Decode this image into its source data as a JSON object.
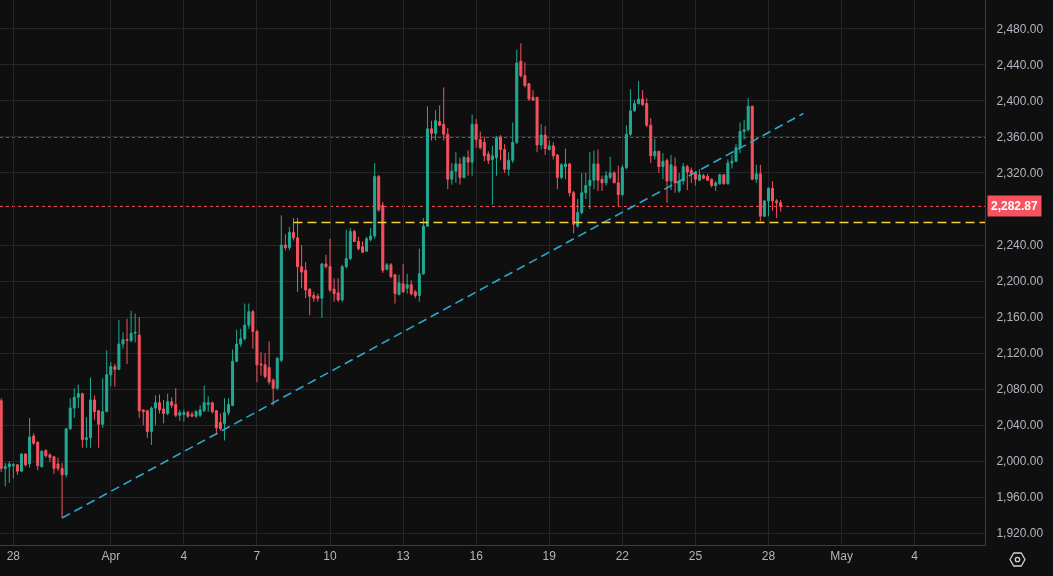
{
  "chart_data": {
    "type": "candlestick",
    "x": [
      "--03-27T12:00",
      "--03-27T16:00",
      "--03-27T20:00",
      "--03-28T00:00",
      "--03-28T04:00",
      "--03-28T08:00",
      "--03-28T12:00",
      "--03-28T16:00",
      "--03-28T20:00",
      "--03-29T00:00",
      "--03-29T04:00",
      "--03-29T08:00",
      "--03-29T12:00",
      "--03-29T16:00",
      "--03-29T20:00",
      "--03-30T00:00",
      "--03-30T04:00",
      "--03-30T08:00",
      "--03-30T12:00",
      "--03-30T16:00",
      "--03-30T20:00",
      "--03-31T00:00",
      "--03-31T04:00",
      "--03-31T08:00",
      "--03-31T12:00",
      "--03-31T16:00",
      "--03-31T20:00",
      "--04-01T00:00",
      "--04-01T04:00",
      "--04-01T08:00",
      "--04-01T12:00",
      "--04-01T16:00",
      "--04-01T20:00",
      "--04-02T00:00",
      "--04-02T04:00",
      "--04-02T08:00",
      "--04-02T12:00",
      "--04-02T16:00",
      "--04-02T20:00",
      "--04-03T00:00",
      "--04-03T04:00",
      "--04-03T08:00",
      "--04-03T12:00",
      "--04-03T16:00",
      "--04-03T20:00",
      "--04-04T00:00",
      "--04-04T04:00",
      "--04-04T08:00",
      "--04-04T12:00",
      "--04-04T16:00",
      "--04-04T20:00",
      "--04-05T00:00",
      "--04-05T04:00",
      "--04-05T08:00",
      "--04-05T12:00",
      "--04-05T16:00",
      "--04-05T20:00",
      "--04-06T00:00",
      "--04-06T04:00",
      "--04-06T08:00",
      "--04-06T12:00",
      "--04-06T16:00",
      "--04-06T20:00",
      "--04-07T00:00",
      "--04-07T04:00",
      "--04-07T08:00",
      "--04-07T12:00",
      "--04-07T16:00",
      "--04-07T20:00",
      "--04-08T00:00",
      "--04-08T04:00",
      "--04-08T08:00",
      "--04-08T12:00",
      "--04-08T16:00",
      "--04-08T20:00",
      "--04-09T00:00",
      "--04-09T04:00",
      "--04-09T08:00",
      "--04-09T12:00",
      "--04-09T16:00",
      "--04-09T20:00",
      "--04-10T00:00",
      "--04-10T04:00",
      "--04-10T08:00",
      "--04-10T12:00",
      "--04-10T16:00",
      "--04-10T20:00",
      "--04-11T00:00",
      "--04-11T04:00",
      "--04-11T08:00",
      "--04-11T12:00",
      "--04-11T16:00",
      "--04-11T20:00",
      "--04-12T00:00",
      "--04-12T04:00",
      "--04-12T08:00",
      "--04-12T12:00",
      "--04-12T16:00",
      "--04-12T20:00",
      "--04-13T00:00",
      "--04-13T04:00",
      "--04-13T08:00",
      "--04-13T12:00",
      "--04-13T16:00",
      "--04-13T20:00",
      "--04-14T00:00",
      "--04-14T04:00",
      "--04-14T08:00",
      "--04-14T12:00",
      "--04-14T16:00",
      "--04-14T20:00",
      "--04-15T00:00",
      "--04-15T04:00",
      "--04-15T08:00",
      "--04-15T12:00",
      "--04-15T16:00",
      "--04-15T20:00",
      "--04-16T00:00",
      "--04-16T04:00",
      "--04-16T08:00",
      "--04-16T12:00",
      "--04-16T16:00",
      "--04-16T20:00",
      "--04-17T00:00",
      "--04-17T04:00",
      "--04-17T08:00",
      "--04-17T12:00",
      "--04-17T16:00",
      "--04-17T20:00",
      "--04-18T00:00",
      "--04-18T04:00",
      "--04-18T08:00",
      "--04-18T12:00",
      "--04-18T16:00",
      "--04-18T20:00",
      "--04-19T00:00",
      "--04-19T04:00",
      "--04-19T08:00",
      "--04-19T12:00",
      "--04-19T16:00",
      "--04-19T20:00",
      "--04-20T00:00",
      "--04-20T04:00",
      "--04-20T08:00",
      "--04-20T12:00",
      "--04-20T16:00",
      "--04-20T20:00",
      "--04-21T00:00",
      "--04-21T04:00",
      "--04-21T08:00",
      "--04-21T12:00",
      "--04-21T16:00",
      "--04-21T20:00",
      "--04-22T00:00",
      "--04-22T04:00",
      "--04-22T08:00",
      "--04-22T12:00",
      "--04-22T16:00",
      "--04-22T20:00",
      "--04-23T00:00",
      "--04-23T04:00",
      "--04-23T08:00",
      "--04-23T12:00",
      "--04-23T16:00",
      "--04-23T20:00",
      "--04-24T00:00",
      "--04-24T04:00",
      "--04-24T08:00",
      "--04-24T12:00",
      "--04-24T16:00",
      "--04-24T20:00",
      "--04-25T00:00",
      "--04-25T04:00",
      "--04-25T08:00",
      "--04-25T12:00",
      "--04-25T16:00",
      "--04-25T20:00",
      "--04-26T00:00",
      "--04-26T04:00",
      "--04-26T08:00",
      "--04-26T12:00",
      "--04-26T16:00",
      "--04-26T20:00",
      "--04-27T00:00",
      "--04-27T04:00",
      "--04-27T08:00",
      "--04-27T12:00",
      "--04-27T16:00",
      "--04-27T20:00",
      "--04-28T00:00",
      "--04-28T04:00",
      "--04-28T08:00",
      "--04-28T12:00"
    ],
    "ohlc": [
      [
        2067,
        2070,
        1988,
        1992
      ],
      [
        1992,
        1998,
        1972,
        1994
      ],
      [
        1994,
        2000,
        1976,
        1997
      ],
      [
        1995,
        1998,
        1981,
        1996
      ],
      [
        1996,
        1997,
        1985,
        1989
      ],
      [
        1989,
        2009,
        1988,
        2008
      ],
      [
        2008,
        2009,
        1994,
        1996
      ],
      [
        1997,
        2048,
        1993,
        2027
      ],
      [
        2028,
        2031,
        2018,
        2020
      ],
      [
        2021,
        2022,
        1990,
        1995
      ],
      [
        1994,
        2012,
        1993,
        2011
      ],
      [
        2012,
        2013,
        2004,
        2006
      ],
      [
        2007,
        2009,
        1999,
        2004
      ],
      [
        2005,
        2006,
        1986,
        1992
      ],
      [
        1997,
        2004,
        1989,
        1992
      ],
      [
        1992,
        1998,
        1937,
        1985
      ],
      [
        1985,
        2037,
        1982,
        2036
      ],
      [
        2036,
        2070,
        2035,
        2059
      ],
      [
        2059,
        2081,
        2048,
        2071
      ],
      [
        2071,
        2085,
        2059,
        2075
      ],
      [
        2075,
        2076,
        2015,
        2024
      ],
      [
        2024,
        2049,
        2015,
        2026
      ],
      [
        2026,
        2093,
        2015,
        2068
      ],
      [
        2068,
        2073,
        2046,
        2055
      ],
      [
        2056,
        2057,
        2015,
        2041
      ],
      [
        2041,
        2092,
        2037,
        2055
      ],
      [
        2055,
        2123,
        2055,
        2096
      ],
      [
        2096,
        2110,
        2083,
        2105
      ],
      [
        2105,
        2108,
        2083,
        2102
      ],
      [
        2102,
        2157,
        2101,
        2130
      ],
      [
        2130,
        2143,
        2125,
        2135
      ],
      [
        2135,
        2158,
        2108,
        2134
      ],
      [
        2134,
        2167,
        2132,
        2142
      ],
      [
        2142,
        2164,
        2132,
        2143
      ],
      [
        2140,
        2160,
        2048,
        2056
      ],
      [
        2057,
        2057,
        2040,
        2055
      ],
      [
        2056,
        2057,
        2026,
        2033
      ],
      [
        2033,
        2061,
        2018,
        2059
      ],
      [
        2059,
        2073,
        2040,
        2065
      ],
      [
        2065,
        2074,
        2053,
        2057
      ],
      [
        2058,
        2068,
        2042,
        2053
      ],
      [
        2053,
        2075,
        2051,
        2066
      ],
      [
        2066,
        2071,
        2059,
        2062
      ],
      [
        2063,
        2081,
        2049,
        2051
      ],
      [
        2051,
        2057,
        2045,
        2054
      ],
      [
        2052,
        2057,
        2044,
        2054
      ],
      [
        2054,
        2056,
        2048,
        2050
      ],
      [
        2052,
        2055,
        2049,
        2050
      ],
      [
        2050,
        2057,
        2048,
        2055
      ],
      [
        2051,
        2062,
        2049,
        2057
      ],
      [
        2056,
        2084,
        2055,
        2065
      ],
      [
        2063,
        2072,
        2055,
        2065
      ],
      [
        2065,
        2066,
        2053,
        2055
      ],
      [
        2056,
        2057,
        2029,
        2037
      ],
      [
        2043,
        2053,
        2034,
        2036
      ],
      [
        2042,
        2070,
        2023,
        2054
      ],
      [
        2054,
        2070,
        2051,
        2063
      ],
      [
        2062,
        2124,
        2061,
        2111
      ],
      [
        2111,
        2146,
        2110,
        2130
      ],
      [
        2130,
        2147,
        2127,
        2136
      ],
      [
        2136,
        2175,
        2134,
        2151
      ],
      [
        2151,
        2175,
        2147,
        2166
      ],
      [
        2166,
        2168,
        2125,
        2144
      ],
      [
        2144,
        2146,
        2088,
        2107
      ],
      [
        2108,
        2121,
        2095,
        2107
      ],
      [
        2107,
        2120,
        2092,
        2094
      ],
      [
        2104,
        2133,
        2085,
        2088
      ],
      [
        2090,
        2092,
        2062,
        2081
      ],
      [
        2081,
        2116,
        2079,
        2114
      ],
      [
        2112,
        2273,
        2110,
        2240
      ],
      [
        2240,
        2252,
        2234,
        2237
      ],
      [
        2237,
        2260,
        2234,
        2254
      ],
      [
        2254,
        2270,
        2245,
        2248
      ],
      [
        2248,
        2270,
        2188,
        2216
      ],
      [
        2216,
        2240,
        2192,
        2210
      ],
      [
        2212,
        2221,
        2181,
        2190
      ],
      [
        2191,
        2192,
        2162,
        2183
      ],
      [
        2184,
        2188,
        2177,
        2181
      ],
      [
        2183,
        2186,
        2177,
        2181
      ],
      [
        2181,
        2220,
        2159,
        2219
      ],
      [
        2219,
        2229,
        2214,
        2216
      ],
      [
        2216,
        2247,
        2188,
        2190
      ],
      [
        2191,
        2203,
        2177,
        2186
      ],
      [
        2187,
        2203,
        2177,
        2179
      ],
      [
        2179,
        2218,
        2177,
        2216
      ],
      [
        2216,
        2257,
        2214,
        2225
      ],
      [
        2225,
        2259,
        2223,
        2255
      ],
      [
        2255,
        2257,
        2244,
        2244
      ],
      [
        2244,
        2249,
        2234,
        2236
      ],
      [
        2238,
        2244,
        2231,
        2232
      ],
      [
        2233,
        2249,
        2233,
        2247
      ],
      [
        2246,
        2259,
        2244,
        2250
      ],
      [
        2250,
        2331,
        2247,
        2316
      ],
      [
        2316,
        2318,
        2277,
        2279
      ],
      [
        2284,
        2288,
        2209,
        2212
      ],
      [
        2213,
        2220,
        2212,
        2218
      ],
      [
        2218,
        2220,
        2203,
        2205
      ],
      [
        2207,
        2207,
        2175,
        2186
      ],
      [
        2185,
        2207,
        2184,
        2198
      ],
      [
        2197,
        2219,
        2187,
        2188
      ],
      [
        2192,
        2208,
        2186,
        2196
      ],
      [
        2196,
        2201,
        2184,
        2186
      ],
      [
        2188,
        2190,
        2181,
        2184
      ],
      [
        2184,
        2236,
        2177,
        2208
      ],
      [
        2208,
        2270,
        2207,
        2261
      ],
      [
        2261,
        2394,
        2260,
        2369
      ],
      [
        2369,
        2378,
        2356,
        2364
      ],
      [
        2364,
        2390,
        2356,
        2378
      ],
      [
        2377,
        2395,
        2372,
        2373
      ],
      [
        2374,
        2415,
        2356,
        2363
      ],
      [
        2363,
        2370,
        2302,
        2313
      ],
      [
        2313,
        2331,
        2307,
        2322
      ],
      [
        2322,
        2343,
        2309,
        2330
      ],
      [
        2330,
        2337,
        2307,
        2315
      ],
      [
        2315,
        2339,
        2314,
        2337
      ],
      [
        2337,
        2345,
        2317,
        2332
      ],
      [
        2332,
        2385,
        2317,
        2374
      ],
      [
        2374,
        2380,
        2348,
        2357
      ],
      [
        2357,
        2366,
        2346,
        2348
      ],
      [
        2354,
        2360,
        2333,
        2339
      ],
      [
        2341,
        2344,
        2330,
        2334
      ],
      [
        2335,
        2350,
        2285,
        2339
      ],
      [
        2337,
        2361,
        2317,
        2359
      ],
      [
        2360,
        2362,
        2334,
        2346
      ],
      [
        2346,
        2352,
        2320,
        2324
      ],
      [
        2324,
        2343,
        2317,
        2334
      ],
      [
        2334,
        2376,
        2331,
        2354
      ],
      [
        2354,
        2457,
        2352,
        2442
      ],
      [
        2444,
        2464,
        2426,
        2428
      ],
      [
        2428,
        2443,
        2415,
        2417
      ],
      [
        2419,
        2420,
        2400,
        2402
      ],
      [
        2404,
        2412,
        2400,
        2401
      ],
      [
        2404,
        2404,
        2343,
        2351
      ],
      [
        2351,
        2374,
        2346,
        2362
      ],
      [
        2362,
        2372,
        2340,
        2347
      ],
      [
        2346,
        2356,
        2345,
        2350
      ],
      [
        2350,
        2354,
        2335,
        2339
      ],
      [
        2340,
        2341,
        2302,
        2315
      ],
      [
        2315,
        2331,
        2313,
        2329
      ],
      [
        2327,
        2347,
        2313,
        2330
      ],
      [
        2330,
        2331,
        2294,
        2298
      ],
      [
        2298,
        2300,
        2253,
        2263
      ],
      [
        2261,
        2291,
        2259,
        2276
      ],
      [
        2276,
        2320,
        2274,
        2298
      ],
      [
        2298,
        2320,
        2291,
        2306
      ],
      [
        2306,
        2343,
        2280,
        2312
      ],
      [
        2312,
        2345,
        2302,
        2330
      ],
      [
        2330,
        2346,
        2300,
        2312
      ],
      [
        2313,
        2317,
        2300,
        2309
      ],
      [
        2309,
        2322,
        2306,
        2317
      ],
      [
        2315,
        2338,
        2313,
        2320
      ],
      [
        2320,
        2322,
        2309,
        2309
      ],
      [
        2309,
        2328,
        2283,
        2296
      ],
      [
        2296,
        2329,
        2294,
        2326
      ],
      [
        2326,
        2373,
        2324,
        2363
      ],
      [
        2363,
        2413,
        2361,
        2389
      ],
      [
        2389,
        2401,
        2388,
        2397
      ],
      [
        2397,
        2422,
        2396,
        2402
      ],
      [
        2402,
        2412,
        2394,
        2396
      ],
      [
        2397,
        2403,
        2371,
        2373
      ],
      [
        2373,
        2381,
        2331,
        2339
      ],
      [
        2339,
        2358,
        2335,
        2344
      ],
      [
        2344,
        2344,
        2320,
        2327
      ],
      [
        2327,
        2342,
        2313,
        2333
      ],
      [
        2334,
        2336,
        2287,
        2311
      ],
      [
        2311,
        2340,
        2301,
        2329
      ],
      [
        2327,
        2337,
        2298,
        2309
      ],
      [
        2300,
        2320,
        2298,
        2311
      ],
      [
        2311,
        2331,
        2307,
        2327
      ],
      [
        2327,
        2329,
        2301,
        2321
      ],
      [
        2323,
        2326,
        2309,
        2319
      ],
      [
        2320,
        2322,
        2306,
        2313
      ],
      [
        2312,
        2324,
        2311,
        2318
      ],
      [
        2317,
        2319,
        2313,
        2314
      ],
      [
        2316,
        2319,
        2311,
        2312
      ],
      [
        2313,
        2314,
        2304,
        2306
      ],
      [
        2306,
        2311,
        2300,
        2309
      ],
      [
        2308,
        2319,
        2307,
        2318
      ],
      [
        2318,
        2318,
        2307,
        2308
      ],
      [
        2308,
        2335,
        2307,
        2331
      ],
      [
        2331,
        2340,
        2325,
        2333
      ],
      [
        2333,
        2352,
        2332,
        2348
      ],
      [
        2348,
        2376,
        2342,
        2366
      ],
      [
        2366,
        2379,
        2357,
        2368
      ],
      [
        2368,
        2403,
        2366,
        2394
      ],
      [
        2394,
        2395,
        2312,
        2313
      ],
      [
        2313,
        2329,
        2309,
        2319
      ],
      [
        2319,
        2329,
        2266,
        2272
      ],
      [
        2272,
        2290,
        2271,
        2289
      ],
      [
        2289,
        2304,
        2272,
        2303
      ],
      [
        2303,
        2311,
        2278,
        2289
      ],
      [
        2289,
        2291,
        2270,
        2287
      ],
      [
        2287,
        2290,
        2277,
        2282.87
      ]
    ],
    "colors": [
      "#f7525f",
      "#22ab94",
      "#22ab94",
      "#22ab94",
      "#f7525f",
      "#22ab94",
      "#f7525f",
      "#22ab94",
      "#f7525f",
      "#f7525f",
      "#22ab94",
      "#f7525f",
      "#f7525f",
      "#f7525f",
      "#f7525f",
      "#f7525f",
      "#22ab94",
      "#22ab94",
      "#22ab94",
      "#22ab94",
      "#f7525f",
      "#22ab94",
      "#22ab94",
      "#f7525f",
      "#f7525f",
      "#22ab94",
      "#22ab94",
      "#22ab94",
      "#f7525f",
      "#22ab94",
      "#22ab94",
      "#f7525f",
      "#22ab94",
      "#22ab94",
      "#f7525f",
      "#f7525f",
      "#f7525f",
      "#22ab94",
      "#22ab94",
      "#f7525f",
      "#f7525f",
      "#22ab94",
      "#f7525f",
      "#f7525f",
      "#22ab94",
      "#22ab94",
      "#f7525f",
      "#f7525f",
      "#22ab94",
      "#22ab94",
      "#22ab94",
      "#22ab94",
      "#f7525f",
      "#f7525f",
      "#f7525f",
      "#22ab94",
      "#22ab94",
      "#22ab94",
      "#22ab94",
      "#22ab94",
      "#22ab94",
      "#22ab94",
      "#f7525f",
      "#f7525f",
      "#f7525f",
      "#f7525f",
      "#f7525f",
      "#f7525f",
      "#22ab94",
      "#22ab94",
      "#f7525f",
      "#22ab94",
      "#f7525f",
      "#f7525f",
      "#f7525f",
      "#f7525f",
      "#f7525f",
      "#f7525f",
      "#f7525f",
      "#22ab94",
      "#f7525f",
      "#f7525f",
      "#f7525f",
      "#f7525f",
      "#22ab94",
      "#22ab94",
      "#22ab94",
      "#f7525f",
      "#f7525f",
      "#f7525f",
      "#22ab94",
      "#22ab94",
      "#22ab94",
      "#f7525f",
      "#f7525f",
      "#22ab94",
      "#f7525f",
      "#f7525f",
      "#22ab94",
      "#f7525f",
      "#22ab94",
      "#f7525f",
      "#f7525f",
      "#22ab94",
      "#22ab94",
      "#22ab94",
      "#f7525f",
      "#22ab94",
      "#f7525f",
      "#f7525f",
      "#f7525f",
      "#22ab94",
      "#22ab94",
      "#f7525f",
      "#22ab94",
      "#f7525f",
      "#22ab94",
      "#f7525f",
      "#f7525f",
      "#f7525f",
      "#f7525f",
      "#22ab94",
      "#22ab94",
      "#f7525f",
      "#f7525f",
      "#22ab94",
      "#22ab94",
      "#22ab94",
      "#f7525f",
      "#f7525f",
      "#f7525f",
      "#f7525f",
      "#f7525f",
      "#22ab94",
      "#f7525f",
      "#22ab94",
      "#f7525f",
      "#f7525f",
      "#22ab94",
      "#22ab94",
      "#f7525f",
      "#f7525f",
      "#22ab94",
      "#22ab94",
      "#22ab94",
      "#22ab94",
      "#22ab94",
      "#f7525f",
      "#f7525f",
      "#22ab94",
      "#22ab94",
      "#f7525f",
      "#f7525f",
      "#22ab94",
      "#22ab94",
      "#22ab94",
      "#22ab94",
      "#22ab94",
      "#f7525f",
      "#f7525f",
      "#f7525f",
      "#22ab94",
      "#f7525f",
      "#22ab94",
      "#f7525f",
      "#22ab94",
      "#f7525f",
      "#22ab94",
      "#22ab94",
      "#f7525f",
      "#f7525f",
      "#f7525f",
      "#22ab94",
      "#f7525f",
      "#f7525f",
      "#f7525f",
      "#22ab94",
      "#22ab94",
      "#f7525f",
      "#22ab94",
      "#22ab94",
      "#22ab94",
      "#22ab94",
      "#22ab94",
      "#22ab94",
      "#f7525f",
      "#22ab94",
      "#f7525f",
      "#22ab94",
      "#22ab94",
      "#f7525f",
      "#f7525f",
      "#f7525f"
    ],
    "series": [
      {
        "type": "line",
        "x": [
          "--03-30T00:00",
          "--04-29T10:20"
        ],
        "values": [
          1937,
          2386
        ],
        "color": "#29a9cc",
        "line_style": "dashed"
      },
      {
        "type": "line",
        "x": [
          "--04-08T12:00",
          "--05-06T21:20"
        ],
        "values": [
          2265,
          2265
        ],
        "color": "#f2d13a",
        "line_style": "dashed"
      }
    ],
    "ref_lines": [
      {
        "axis": "y",
        "value": 2360,
        "color": "#f2d13a",
        "line_style": "dotted"
      },
      {
        "axis": "y",
        "value": 2282.87,
        "label": "2,282.87",
        "color": "#f7525f",
        "line_style": "dotted"
      }
    ],
    "xlim": [
      "--03-27T10:50",
      "--05-06T21:20"
    ],
    "ylim": [
      1907,
      2512
    ],
    "xticks": [
      {
        "value": "--03-28",
        "label": "28"
      },
      {
        "value": "--04-01",
        "label": "Apr"
      },
      {
        "value": "--04-04",
        "label": "4"
      },
      {
        "value": "--04-07",
        "label": "7"
      },
      {
        "value": "--04-10",
        "label": "10"
      },
      {
        "value": "--04-13",
        "label": "13"
      },
      {
        "value": "--04-16",
        "label": "16"
      },
      {
        "value": "--04-19",
        "label": "19"
      },
      {
        "value": "--04-22",
        "label": "22"
      },
      {
        "value": "--04-25",
        "label": "25"
      },
      {
        "value": "--04-28",
        "label": "28"
      },
      {
        "value": "--05-01",
        "label": "May"
      },
      {
        "value": "--05-04",
        "label": "4"
      }
    ],
    "yticks": [
      {
        "value": 1920,
        "label": "1,920.00"
      },
      {
        "value": 1960,
        "label": "1,960.00"
      },
      {
        "value": 2000,
        "label": "2,000.00"
      },
      {
        "value": 2040,
        "label": "2,040.00"
      },
      {
        "value": 2080,
        "label": "2,080.00"
      },
      {
        "value": 2120,
        "label": "2,120.00"
      },
      {
        "value": 2160,
        "label": "2,160.00"
      },
      {
        "value": 2200,
        "label": "2,200.00"
      },
      {
        "value": 2240,
        "label": "2,240.00"
      },
      {
        "value": 2320,
        "label": "2,320.00"
      },
      {
        "value": 2360,
        "label": "2,360.00"
      },
      {
        "value": 2400,
        "label": "2,400.00"
      },
      {
        "value": 2440,
        "label": "2,440.00"
      },
      {
        "value": 2480,
        "label": "2,480.00"
      }
    ],
    "grid": true
  }
}
